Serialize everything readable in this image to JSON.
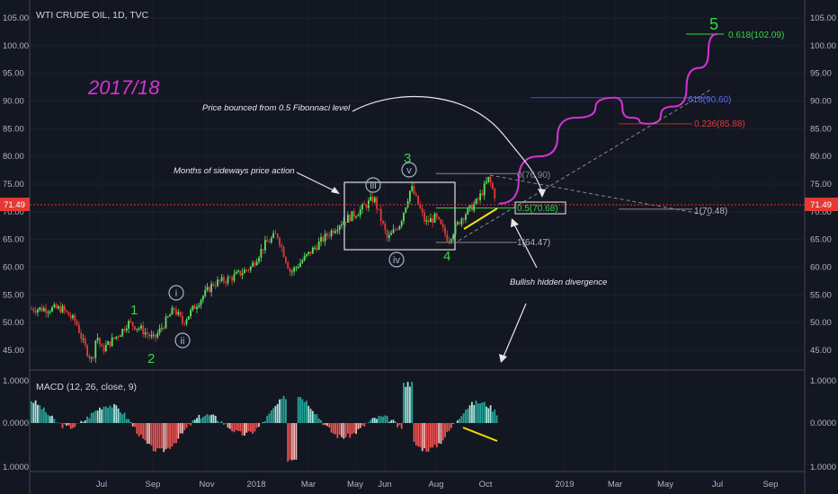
{
  "header": {
    "symbol_title": "WTI CRUDE OIL, 1D, TVC"
  },
  "macd_label": "MACD (12, 26, close, 9)",
  "year_label": "2017/18",
  "current_price": "71.49",
  "annotations": {
    "fib_bounce": "Price bounced from 0.5 Fibonnaci level",
    "sideways": "Months of sideways price action",
    "divergence": "Bullish hidden divergence"
  },
  "fib_labels": {
    "f0618_target": "0.618(102.09)",
    "f618": "618(90.60)",
    "f0236": "0.236(85.88)",
    "f0": "0(76.90)",
    "f05": "0.5(70.68)",
    "f1_right": "1(70.48)",
    "f1_low": "1(64.47)"
  },
  "wave_labels": {
    "w1": "1",
    "w2": "2",
    "w3": "3",
    "w4": "4",
    "w5": "5",
    "wi": "i",
    "wii": "ii",
    "wiii": "iii",
    "wiv": "iv",
    "wv": "v"
  },
  "colors": {
    "background": "#131722",
    "bull": "#26a69a",
    "bear": "#ef5350",
    "candle_up": "#5be35b",
    "candle_down": "#e53935",
    "projection": "#d633d6",
    "year_label": "#d633d6",
    "wave": "#31d843",
    "price_line": "#ff2a2a",
    "divergence": "#f2e20d"
  },
  "chart_data": {
    "type": "candlestick",
    "price_axis": {
      "min": 40,
      "max": 107,
      "ticks": [
        "105.00",
        "100.00",
        "95.00",
        "90.00",
        "85.00",
        "80.00",
        "75.00",
        "70.00",
        "65.00",
        "60.00",
        "55.00",
        "50.00",
        "45.00"
      ]
    },
    "macd_axis": {
      "ticks": [
        "1.0000",
        "0.0000",
        "1.0000"
      ]
    },
    "x_ticks": [
      "Jul",
      "Sep",
      "Nov",
      "2018",
      "Mar",
      "May",
      "Jun",
      "Aug",
      "Oct",
      "2019",
      "Mar",
      "May",
      "Jul",
      "Sep"
    ],
    "price_path": [
      {
        "date": "2017-05",
        "price": 52.5
      },
      {
        "date": "2017-06-01",
        "price": 50
      },
      {
        "date": "2017-06-10",
        "price": 46
      },
      {
        "date": "2017-06-20",
        "price": 43
      },
      {
        "date": "2017-06-25",
        "price": 48
      },
      {
        "date": "2017-07-01",
        "price": 45
      },
      {
        "date": "2017-07-15",
        "price": 47
      },
      {
        "date": "2017-07-25",
        "price": 48.5
      },
      {
        "date": "2017-08-01",
        "price": 50
      },
      {
        "date": "2017-08-15",
        "price": 49
      },
      {
        "date": "2017-09-01",
        "price": 47
      },
      {
        "date": "2017-09-25",
        "price": 52.5
      },
      {
        "date": "2017-10-05",
        "price": 50
      },
      {
        "date": "2017-10-25",
        "price": 54
      },
      {
        "date": "2017-11-10",
        "price": 57
      },
      {
        "date": "2017-12-01",
        "price": 58
      },
      {
        "date": "2017-12-25",
        "price": 60
      },
      {
        "date": "2018-01-10",
        "price": 64
      },
      {
        "date": "2018-01-25",
        "price": 66
      },
      {
        "date": "2018-02-10",
        "price": 59
      },
      {
        "date": "2018-03-01",
        "price": 62
      },
      {
        "date": "2018-03-20",
        "price": 65
      },
      {
        "date": "2018-04-10",
        "price": 68
      },
      {
        "date": "2018-05-01",
        "price": 70
      },
      {
        "date": "2018-05-20",
        "price": 72.5
      },
      {
        "date": "2018-06-05",
        "price": 65
      },
      {
        "date": "2018-06-20",
        "price": 68
      },
      {
        "date": "2018-07-03",
        "price": 74.5
      },
      {
        "date": "2018-07-20",
        "price": 68
      },
      {
        "date": "2018-08-01",
        "price": 69
      },
      {
        "date": "2018-08-16",
        "price": 65
      },
      {
        "date": "2018-09-01",
        "price": 69
      },
      {
        "date": "2018-09-20",
        "price": 72
      },
      {
        "date": "2018-10-03",
        "price": 76
      },
      {
        "date": "2018-10-10",
        "price": 73
      },
      {
        "date": "2018-10-15",
        "price": 71.5
      }
    ],
    "projection_path": [
      {
        "date": "2018-10-15",
        "price": 71.5
      },
      {
        "date": "2018-12-01",
        "price": 80
      },
      {
        "date": "2019-01-15",
        "price": 87
      },
      {
        "date": "2019-03-01",
        "price": 90.6
      },
      {
        "date": "2019-03-20",
        "price": 87
      },
      {
        "date": "2019-04-10",
        "price": 85.9
      },
      {
        "date": "2019-05-10",
        "price": 89
      },
      {
        "date": "2019-06-10",
        "price": 96
      },
      {
        "date": "2019-07-01",
        "price": 102.1
      }
    ],
    "fib_levels": [
      {
        "label": "0.618(102.09)",
        "value": 102.09
      },
      {
        "label": "618(90.60)",
        "value": 90.6
      },
      {
        "label": "0.236(85.88)",
        "value": 85.88
      },
      {
        "label": "0(76.90)",
        "value": 76.9
      },
      {
        "label": "0.5(70.68)",
        "value": 70.68
      },
      {
        "label": "1(70.48)",
        "value": 70.48
      },
      {
        "label": "1(64.47)",
        "value": 64.47
      }
    ],
    "current_price": 71.49
  }
}
